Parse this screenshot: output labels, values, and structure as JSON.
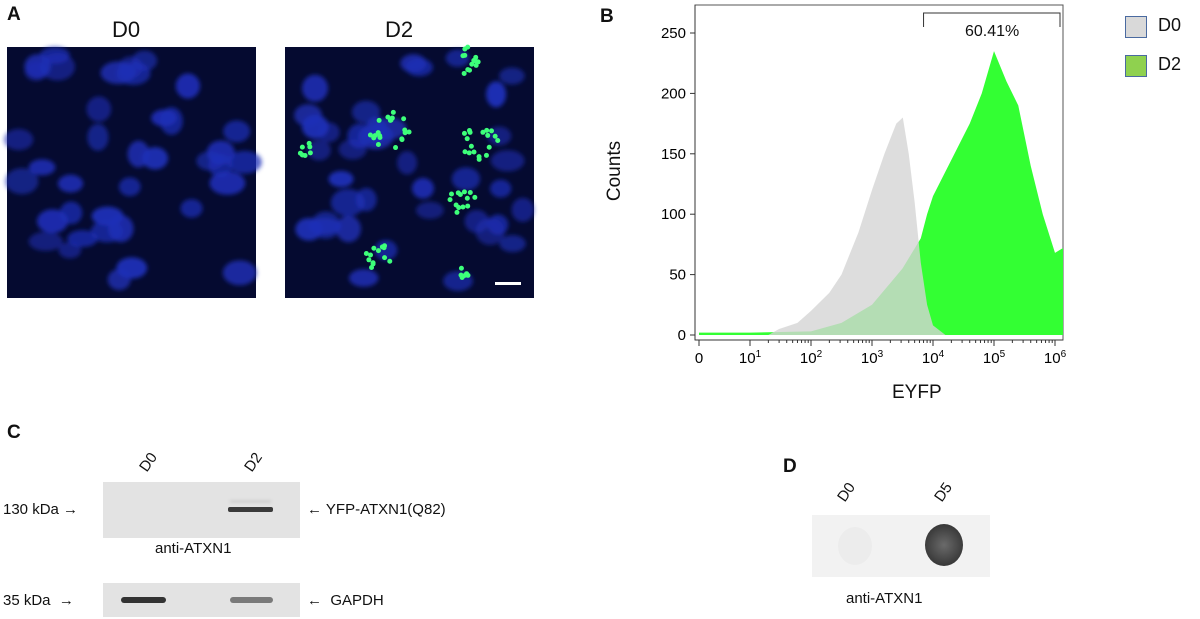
{
  "panels": {
    "a": {
      "label": "A",
      "images": [
        {
          "title": "D0"
        },
        {
          "title": "D2"
        }
      ]
    },
    "b": {
      "label": "B"
    },
    "c": {
      "label": "C",
      "lanes": [
        "D0",
        "D2"
      ],
      "blot1_marker": "130 kDa",
      "blot1_target": "YFP-ATXN1(Q82)",
      "blot1_antibody": "anti-ATXN1",
      "blot2_marker": "35 kDa",
      "blot2_target": "GAPDH"
    },
    "d": {
      "label": "D",
      "lanes": [
        "D0",
        "D5"
      ],
      "antibody": "anti-ATXN1"
    }
  },
  "colors": {
    "d0": "#d4d4d4",
    "d2": "#33ff33",
    "nuclei": "#1e2fb8",
    "puncta": "#3dff7a"
  },
  "chart_data": {
    "type": "area",
    "xlabel": "EYFP",
    "ylabel": "Counts",
    "xscale": "biexponential (log decades)",
    "xticks": [
      "0",
      "10^1",
      "10^2",
      "10^3",
      "10^4",
      "10^5",
      "10^6"
    ],
    "yticks": [
      0,
      50,
      100,
      150,
      200,
      250
    ],
    "ylim": [
      0,
      260
    ],
    "gate": {
      "label": "60.41%",
      "from": 7000,
      "to": 1500000
    },
    "legend": {
      "position": "top-right",
      "entries": [
        "D0",
        "D2"
      ]
    },
    "series": [
      {
        "name": "D0",
        "points": [
          [
            20,
            0
          ],
          [
            30,
            5
          ],
          [
            60,
            10
          ],
          [
            100,
            20
          ],
          [
            200,
            35
          ],
          [
            316,
            50
          ],
          [
            600,
            85
          ],
          [
            1000,
            120
          ],
          [
            1600,
            150
          ],
          [
            2500,
            175
          ],
          [
            3200,
            180
          ],
          [
            4000,
            150
          ],
          [
            5000,
            110
          ],
          [
            6300,
            60
          ],
          [
            8000,
            25
          ],
          [
            10000,
            8
          ],
          [
            16000,
            0
          ]
        ]
      },
      {
        "name": "D2",
        "points": [
          [
            1,
            2
          ],
          [
            10,
            2
          ],
          [
            100,
            3
          ],
          [
            316,
            10
          ],
          [
            1000,
            25
          ],
          [
            3160,
            55
          ],
          [
            6300,
            80
          ],
          [
            8000,
            100
          ],
          [
            10000,
            115
          ],
          [
            20000,
            145
          ],
          [
            40000,
            175
          ],
          [
            63000,
            200
          ],
          [
            100000,
            235
          ],
          [
            160000,
            210
          ],
          [
            250000,
            190
          ],
          [
            400000,
            140
          ],
          [
            630000,
            100
          ],
          [
            1000000,
            68
          ],
          [
            1400000,
            72
          ]
        ]
      }
    ]
  }
}
